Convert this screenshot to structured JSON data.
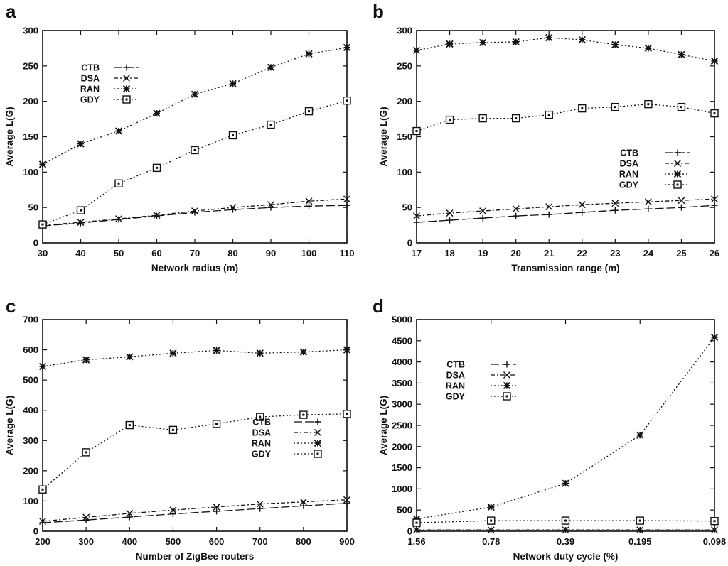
{
  "chart_data": [
    {
      "type": "line",
      "panel_label": "a",
      "xlabel": "Network radius (m)",
      "ylabel": "Average L(G)",
      "x": [
        30,
        40,
        50,
        60,
        70,
        80,
        90,
        100,
        110
      ],
      "xticks": [
        30,
        40,
        50,
        60,
        70,
        80,
        90,
        100,
        110
      ],
      "xlim": [
        30,
        110
      ],
      "yticks": [
        0,
        50,
        100,
        150,
        200,
        250,
        300
      ],
      "ylim": [
        0,
        300
      ],
      "legend_position": "top-left",
      "series": [
        {
          "name": "CTB",
          "values": [
            24,
            28,
            33,
            38,
            43,
            47,
            50,
            52,
            53
          ],
          "marker": "plus",
          "dash": "long"
        },
        {
          "name": "DSA",
          "values": [
            25,
            29,
            34,
            39,
            45,
            50,
            54,
            59,
            62
          ],
          "marker": "x",
          "dash": "dashdot"
        },
        {
          "name": "RAN",
          "values": [
            111,
            140,
            158,
            183,
            210,
            225,
            248,
            267,
            276
          ],
          "marker": "star",
          "dash": "dot"
        },
        {
          "name": "GDY",
          "values": [
            26,
            46,
            84,
            106,
            131,
            152,
            167,
            186,
            201
          ],
          "marker": "square",
          "dash": "dot"
        }
      ]
    },
    {
      "type": "line",
      "panel_label": "b",
      "xlabel": "Transmission range (m)",
      "ylabel": "Average L(G)",
      "x": [
        17,
        18,
        19,
        20,
        21,
        22,
        23,
        24,
        25,
        26
      ],
      "xticks": [
        17,
        18,
        19,
        20,
        21,
        22,
        23,
        24,
        25,
        26
      ],
      "xlim": [
        17,
        26
      ],
      "yticks": [
        0,
        50,
        100,
        150,
        200,
        250,
        300
      ],
      "ylim": [
        0,
        300
      ],
      "legend_position": "center-right",
      "series": [
        {
          "name": "CTB",
          "values": [
            29,
            32,
            35,
            38,
            40,
            43,
            46,
            48,
            50,
            53
          ],
          "marker": "plus",
          "dash": "long"
        },
        {
          "name": "DSA",
          "values": [
            38,
            42,
            45,
            48,
            51,
            54,
            56,
            58,
            60,
            62
          ],
          "marker": "x",
          "dash": "dashdot"
        },
        {
          "name": "RAN",
          "values": [
            272,
            281,
            283,
            284,
            290,
            287,
            280,
            275,
            266,
            257
          ],
          "marker": "star",
          "dash": "dot"
        },
        {
          "name": "GDY",
          "values": [
            158,
            174,
            176,
            176,
            181,
            190,
            192,
            196,
            192,
            183
          ],
          "marker": "square",
          "dash": "dot"
        }
      ]
    },
    {
      "type": "line",
      "panel_label": "c",
      "xlabel": "Number of ZigBee routers",
      "ylabel": "Average L(G)",
      "x": [
        200,
        300,
        400,
        500,
        600,
        700,
        800,
        900
      ],
      "xticks": [
        200,
        300,
        400,
        500,
        600,
        700,
        800,
        900
      ],
      "xlim": [
        200,
        900
      ],
      "yticks": [
        0,
        100,
        200,
        300,
        400,
        500,
        600,
        700
      ],
      "ylim": [
        0,
        700
      ],
      "legend_position": "center-right",
      "series": [
        {
          "name": "CTB",
          "values": [
            28,
            37,
            47,
            57,
            66,
            75,
            84,
            92
          ],
          "marker": "plus",
          "dash": "long"
        },
        {
          "name": "DSA",
          "values": [
            33,
            46,
            59,
            70,
            80,
            90,
            97,
            104
          ],
          "marker": "x",
          "dash": "dashdot"
        },
        {
          "name": "RAN",
          "values": [
            545,
            567,
            577,
            589,
            598,
            589,
            593,
            600
          ],
          "marker": "star",
          "dash": "dot"
        },
        {
          "name": "GDY",
          "values": [
            138,
            261,
            351,
            335,
            355,
            378,
            385,
            388
          ],
          "marker": "square",
          "dash": "dot"
        }
      ]
    },
    {
      "type": "line",
      "panel_label": "d",
      "xlabel": "Network duty cycle (%)",
      "ylabel": "Average L(G)",
      "x": [
        "1.56",
        "0.78",
        "0.39",
        "0.195",
        "0.098"
      ],
      "xticks": [
        "1.56",
        "0.78",
        "0.39",
        "0.195",
        "0.098"
      ],
      "yticks": [
        0,
        500,
        1000,
        1500,
        2000,
        2500,
        3000,
        3500,
        4000,
        4500,
        5000
      ],
      "ylim": [
        0,
        5000
      ],
      "legend_position": "top-left",
      "series": [
        {
          "name": "CTB",
          "values": [
            25,
            25,
            25,
            25,
            25
          ],
          "marker": "plus",
          "dash": "long"
        },
        {
          "name": "DSA",
          "values": [
            30,
            30,
            30,
            30,
            30
          ],
          "marker": "x",
          "dash": "dashdot"
        },
        {
          "name": "RAN",
          "values": [
            290,
            570,
            1130,
            2270,
            4580
          ],
          "marker": "star",
          "dash": "dot"
        },
        {
          "name": "GDY",
          "values": [
            200,
            250,
            250,
            250,
            240
          ],
          "marker": "square",
          "dash": "dot"
        }
      ]
    }
  ]
}
